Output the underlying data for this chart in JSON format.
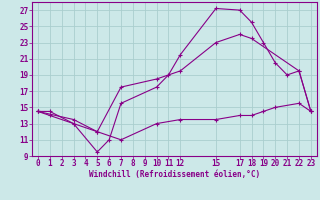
{
  "xlabel": "Windchill (Refroidissement éolien,°C)",
  "bg_color": "#cce8e8",
  "grid_color": "#aacece",
  "line_color": "#880088",
  "xlim": [
    -0.5,
    23.5
  ],
  "ylim": [
    9,
    28
  ],
  "xticks": [
    0,
    1,
    2,
    3,
    4,
    5,
    6,
    7,
    8,
    9,
    10,
    11,
    12,
    15,
    17,
    18,
    19,
    20,
    21,
    22,
    23
  ],
  "yticks": [
    9,
    11,
    13,
    15,
    17,
    19,
    21,
    23,
    25,
    27
  ],
  "line1_x": [
    0,
    1,
    3,
    5,
    6,
    7,
    10,
    11,
    12,
    15,
    17,
    18,
    19,
    20,
    21,
    22,
    23
  ],
  "line1_y": [
    14.5,
    14.0,
    13.0,
    9.5,
    11.0,
    15.5,
    17.5,
    19.0,
    21.5,
    27.2,
    27.0,
    25.5,
    23.0,
    20.5,
    19.0,
    19.5,
    14.5
  ],
  "line2_x": [
    0,
    1,
    3,
    5,
    7,
    10,
    12,
    15,
    17,
    18,
    22,
    23
  ],
  "line2_y": [
    14.5,
    14.5,
    13.0,
    12.0,
    17.5,
    18.5,
    19.5,
    23.0,
    24.0,
    23.5,
    19.5,
    14.5
  ],
  "line3_x": [
    0,
    3,
    5,
    7,
    10,
    12,
    15,
    17,
    18,
    19,
    20,
    22,
    23
  ],
  "line3_y": [
    14.5,
    13.5,
    12.0,
    11.0,
    13.0,
    13.5,
    13.5,
    14.0,
    14.0,
    14.5,
    15.0,
    15.5,
    14.5
  ]
}
